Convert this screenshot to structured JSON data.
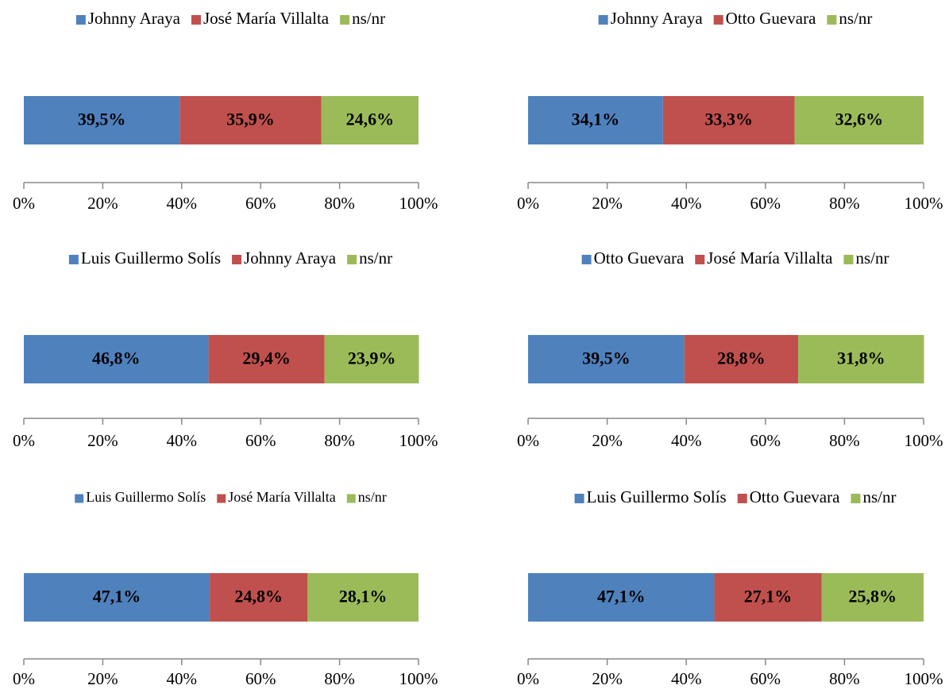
{
  "chart_data": [
    {
      "type": "bar",
      "orientation": "horizontal",
      "stacked": true,
      "categories": [
        null
      ],
      "series": [
        {
          "name": "Johnny Araya",
          "color": "#4f81bd",
          "values": [
            39.5
          ],
          "value_labels": [
            "39,5%"
          ]
        },
        {
          "name": "José María Villalta",
          "color": "#c0504d",
          "values": [
            35.9
          ],
          "value_labels": [
            "35,9%"
          ]
        },
        {
          "name": "ns/nr",
          "color": "#9bbb59",
          "values": [
            24.6
          ],
          "value_labels": [
            "24,6%"
          ]
        }
      ],
      "xlim": [
        0,
        100
      ],
      "xticks": [
        {
          "value": 0,
          "label": "0%"
        },
        {
          "value": 20,
          "label": "20%"
        },
        {
          "value": 40,
          "label": "40%"
        },
        {
          "value": 60,
          "label": "60%"
        },
        {
          "value": 80,
          "label": "80%"
        },
        {
          "value": 100,
          "label": "100%"
        }
      ]
    },
    {
      "type": "bar",
      "orientation": "horizontal",
      "stacked": true,
      "categories": [
        null
      ],
      "series": [
        {
          "name": "Johnny Araya",
          "color": "#4f81bd",
          "values": [
            34.1
          ],
          "value_labels": [
            "34,1%"
          ]
        },
        {
          "name": "Otto Guevara",
          "color": "#c0504d",
          "values": [
            33.3
          ],
          "value_labels": [
            "33,3%"
          ]
        },
        {
          "name": "ns/nr",
          "color": "#9bbb59",
          "values": [
            32.6
          ],
          "value_labels": [
            "32,6%"
          ]
        }
      ],
      "xlim": [
        0,
        100
      ],
      "xticks": [
        {
          "value": 0,
          "label": "0%"
        },
        {
          "value": 20,
          "label": "20%"
        },
        {
          "value": 40,
          "label": "40%"
        },
        {
          "value": 60,
          "label": "60%"
        },
        {
          "value": 80,
          "label": "80%"
        },
        {
          "value": 100,
          "label": "100%"
        }
      ]
    },
    {
      "type": "bar",
      "orientation": "horizontal",
      "stacked": true,
      "categories": [
        null
      ],
      "series": [
        {
          "name": "Luis Guillermo Solís",
          "color": "#4f81bd",
          "values": [
            46.8
          ],
          "value_labels": [
            "46,8%"
          ]
        },
        {
          "name": "Johnny Araya",
          "color": "#c0504d",
          "values": [
            29.4
          ],
          "value_labels": [
            "29,4%"
          ]
        },
        {
          "name": "ns/nr",
          "color": "#9bbb59",
          "values": [
            23.9
          ],
          "value_labels": [
            "23,9%"
          ]
        }
      ],
      "xlim": [
        0,
        100
      ],
      "xticks": [
        {
          "value": 0,
          "label": "0%"
        },
        {
          "value": 20,
          "label": "20%"
        },
        {
          "value": 40,
          "label": "40%"
        },
        {
          "value": 60,
          "label": "60%"
        },
        {
          "value": 80,
          "label": "80%"
        },
        {
          "value": 100,
          "label": "100%"
        }
      ]
    },
    {
      "type": "bar",
      "orientation": "horizontal",
      "stacked": true,
      "categories": [
        null
      ],
      "series": [
        {
          "name": "Otto Guevara",
          "color": "#4f81bd",
          "values": [
            39.5
          ],
          "value_labels": [
            "39,5%"
          ]
        },
        {
          "name": "José María Villalta",
          "color": "#c0504d",
          "values": [
            28.8
          ],
          "value_labels": [
            "28,8%"
          ]
        },
        {
          "name": "ns/nr",
          "color": "#9bbb59",
          "values": [
            31.8
          ],
          "value_labels": [
            "31,8%"
          ]
        }
      ],
      "xlim": [
        0,
        100
      ],
      "xticks": [
        {
          "value": 0,
          "label": "0%"
        },
        {
          "value": 20,
          "label": "20%"
        },
        {
          "value": 40,
          "label": "40%"
        },
        {
          "value": 60,
          "label": "60%"
        },
        {
          "value": 80,
          "label": "80%"
        },
        {
          "value": 100,
          "label": "100%"
        }
      ]
    },
    {
      "type": "bar",
      "orientation": "horizontal",
      "stacked": true,
      "categories": [
        null
      ],
      "series": [
        {
          "name": "Luis Guillermo Solís",
          "color": "#4f81bd",
          "values": [
            47.1
          ],
          "value_labels": [
            "47,1%"
          ]
        },
        {
          "name": "José María Villalta",
          "color": "#c0504d",
          "values": [
            24.8
          ],
          "value_labels": [
            "24,8%"
          ]
        },
        {
          "name": "ns/nr",
          "color": "#9bbb59",
          "values": [
            28.1
          ],
          "value_labels": [
            "28,1%"
          ]
        }
      ],
      "xlim": [
        0,
        100
      ],
      "xticks": [
        {
          "value": 0,
          "label": "0%"
        },
        {
          "value": 20,
          "label": "20%"
        },
        {
          "value": 40,
          "label": "40%"
        },
        {
          "value": 60,
          "label": "60%"
        },
        {
          "value": 80,
          "label": "80%"
        },
        {
          "value": 100,
          "label": "100%"
        }
      ]
    },
    {
      "type": "bar",
      "orientation": "horizontal",
      "stacked": true,
      "categories": [
        null
      ],
      "series": [
        {
          "name": "Luis Guillermo Solís",
          "color": "#4f81bd",
          "values": [
            47.1
          ],
          "value_labels": [
            "47,1%"
          ]
        },
        {
          "name": "Otto Guevara",
          "color": "#c0504d",
          "values": [
            27.1
          ],
          "value_labels": [
            "27,1%"
          ]
        },
        {
          "name": "ns/nr",
          "color": "#9bbb59",
          "values": [
            25.8
          ],
          "value_labels": [
            "25,8%"
          ]
        }
      ],
      "xlim": [
        0,
        100
      ],
      "xticks": [
        {
          "value": 0,
          "label": "0%"
        },
        {
          "value": 20,
          "label": "20%"
        },
        {
          "value": 40,
          "label": "40%"
        },
        {
          "value": 60,
          "label": "60%"
        },
        {
          "value": 80,
          "label": "80%"
        },
        {
          "value": 100,
          "label": "100%"
        }
      ]
    }
  ]
}
